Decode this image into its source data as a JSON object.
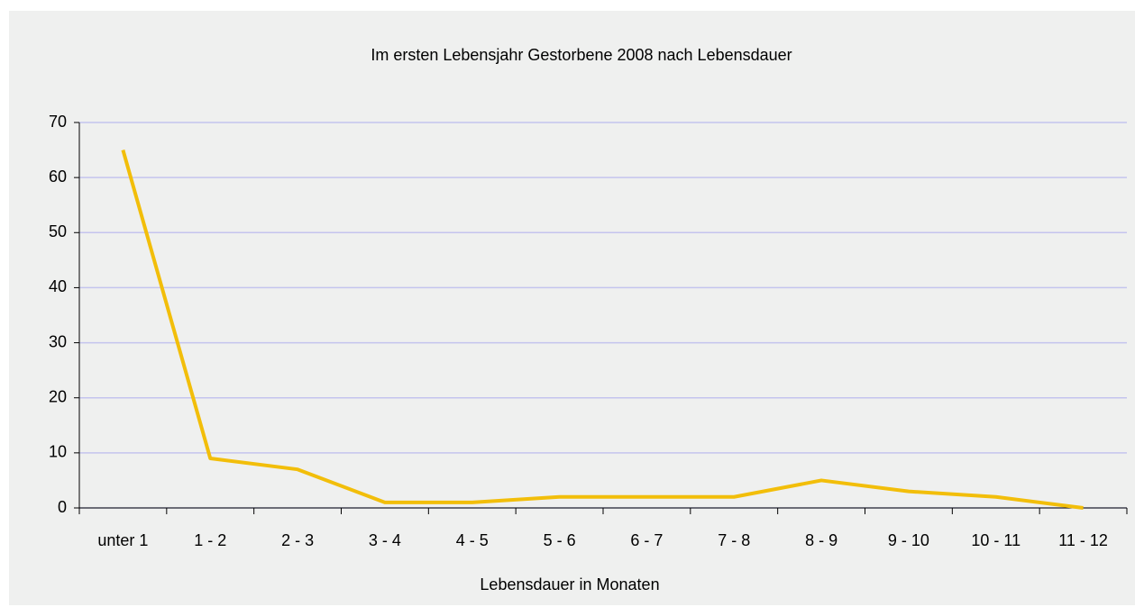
{
  "chart_data": {
    "type": "line",
    "title": "Im ersten Lebensjahr Gestorbene 2008 nach Lebensdauer",
    "x_label": "Lebensdauer in Monaten",
    "categories": [
      "unter 1",
      "1 - 2",
      "2 - 3",
      "3 - 4",
      "4 - 5",
      "5 - 6",
      "6 - 7",
      "7 - 8",
      "8 - 9",
      "9 - 10",
      "10 - 11",
      "11 - 12"
    ],
    "series": [
      {
        "color": "#f2be0a",
        "values": [
          65,
          9,
          7,
          1,
          1,
          2,
          2,
          2,
          5,
          3,
          2,
          0
        ]
      }
    ],
    "ylim": [
      0,
      70
    ],
    "yticks": [
      0,
      10,
      20,
      30,
      40,
      50,
      60,
      70
    ],
    "grid": true,
    "grid_color": "#c4c4ee"
  }
}
